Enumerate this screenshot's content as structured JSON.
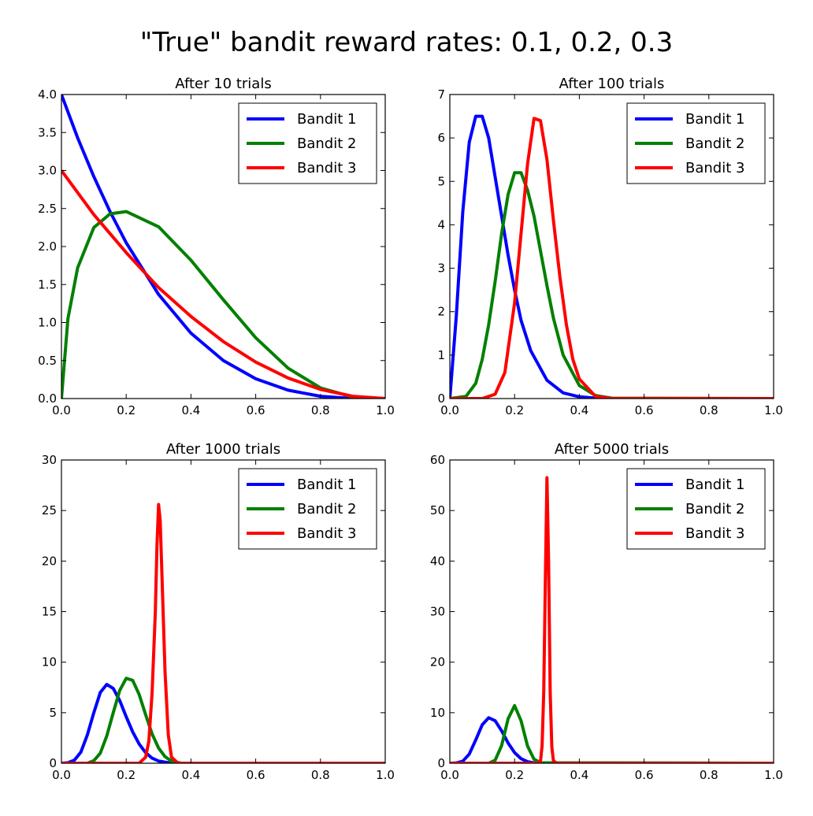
{
  "suptitle": "\"True\" bandit reward rates: 0.1, 0.2, 0.3",
  "chart_data": [
    {
      "type": "line",
      "title": "After 10 trials",
      "xlim": [
        0,
        1
      ],
      "ylim": [
        0,
        4
      ],
      "xticks": [
        0.0,
        0.2,
        0.4,
        0.6,
        0.8,
        1.0
      ],
      "yticks": [
        0.0,
        0.5,
        1.0,
        1.5,
        2.0,
        2.5,
        3.0,
        3.5,
        4.0
      ],
      "xtick_labels": [
        "0.0",
        "0.2",
        "0.4",
        "0.6",
        "0.8",
        "1.0"
      ],
      "ytick_labels": [
        "0.0",
        "0.5",
        "1.0",
        "1.5",
        "2.0",
        "2.5",
        "3.0",
        "3.5",
        "4.0"
      ],
      "legend": "upper-right",
      "series": [
        {
          "name": "Bandit 1",
          "color": "#0000ff",
          "x": [
            0,
            0.05,
            0.1,
            0.15,
            0.2,
            0.3,
            0.4,
            0.5,
            0.6,
            0.7,
            0.8,
            0.9,
            1.0
          ],
          "y": [
            4.0,
            3.43,
            2.92,
            2.46,
            2.05,
            1.37,
            0.86,
            0.5,
            0.26,
            0.11,
            0.03,
            0.0,
            0.0
          ]
        },
        {
          "name": "Bandit 2",
          "color": "#008000",
          "x": [
            0,
            0.02,
            0.05,
            0.1,
            0.15,
            0.2,
            0.3,
            0.4,
            0.5,
            0.6,
            0.7,
            0.8,
            0.9,
            1.0
          ],
          "y": [
            0.0,
            1.05,
            1.72,
            2.25,
            2.43,
            2.46,
            2.26,
            1.82,
            1.3,
            0.8,
            0.4,
            0.14,
            0.02,
            0.0
          ]
        },
        {
          "name": "Bandit 3",
          "color": "#ff0000",
          "x": [
            0,
            0.1,
            0.2,
            0.3,
            0.4,
            0.5,
            0.6,
            0.7,
            0.8,
            0.9,
            1.0
          ],
          "y": [
            3.0,
            2.42,
            1.92,
            1.46,
            1.08,
            0.75,
            0.48,
            0.27,
            0.12,
            0.03,
            0.0
          ]
        }
      ]
    },
    {
      "type": "line",
      "title": "After 100 trials",
      "xlim": [
        0,
        1
      ],
      "ylim": [
        0,
        7
      ],
      "xticks": [
        0.0,
        0.2,
        0.4,
        0.6,
        0.8,
        1.0
      ],
      "yticks": [
        0,
        1,
        2,
        3,
        4,
        5,
        6,
        7
      ],
      "xtick_labels": [
        "0.0",
        "0.2",
        "0.4",
        "0.6",
        "0.8",
        "1.0"
      ],
      "ytick_labels": [
        "0",
        "1",
        "2",
        "3",
        "4",
        "5",
        "6",
        "7"
      ],
      "legend": "upper-right",
      "series": [
        {
          "name": "Bandit 1",
          "color": "#0000ff",
          "x": [
            0,
            0.02,
            0.04,
            0.06,
            0.08,
            0.1,
            0.12,
            0.14,
            0.16,
            0.18,
            0.2,
            0.22,
            0.25,
            0.3,
            0.35,
            0.4,
            0.45,
            0.5,
            1.0
          ],
          "y": [
            0.0,
            1.9,
            4.3,
            5.9,
            6.5,
            6.5,
            6.0,
            5.1,
            4.2,
            3.3,
            2.5,
            1.8,
            1.1,
            0.42,
            0.13,
            0.04,
            0.01,
            0.0,
            0.0
          ]
        },
        {
          "name": "Bandit 2",
          "color": "#008000",
          "x": [
            0,
            0.05,
            0.08,
            0.1,
            0.12,
            0.14,
            0.16,
            0.18,
            0.2,
            0.22,
            0.24,
            0.26,
            0.28,
            0.3,
            0.32,
            0.35,
            0.4,
            0.45,
            0.5,
            1.0
          ],
          "y": [
            0.0,
            0.05,
            0.35,
            0.9,
            1.7,
            2.7,
            3.8,
            4.7,
            5.2,
            5.2,
            4.8,
            4.2,
            3.4,
            2.6,
            1.85,
            1.0,
            0.3,
            0.07,
            0.01,
            0.0
          ]
        },
        {
          "name": "Bandit 3",
          "color": "#ff0000",
          "x": [
            0,
            0.1,
            0.14,
            0.17,
            0.2,
            0.22,
            0.24,
            0.26,
            0.28,
            0.3,
            0.32,
            0.34,
            0.36,
            0.38,
            0.4,
            0.45,
            0.5,
            1.0
          ],
          "y": [
            0.0,
            0.0,
            0.1,
            0.6,
            2.2,
            3.8,
            5.4,
            6.45,
            6.4,
            5.5,
            4.1,
            2.8,
            1.7,
            0.9,
            0.45,
            0.05,
            0.0,
            0.0
          ]
        }
      ]
    },
    {
      "type": "line",
      "title": "After 1000 trials",
      "xlim": [
        0,
        1
      ],
      "ylim": [
        0,
        30
      ],
      "xticks": [
        0.0,
        0.2,
        0.4,
        0.6,
        0.8,
        1.0
      ],
      "yticks": [
        0,
        5,
        10,
        15,
        20,
        25,
        30
      ],
      "xtick_labels": [
        "0.0",
        "0.2",
        "0.4",
        "0.6",
        "0.8",
        "1.0"
      ],
      "ytick_labels": [
        "0",
        "5",
        "10",
        "15",
        "20",
        "25",
        "30"
      ],
      "legend": "upper-right",
      "series": [
        {
          "name": "Bandit 1",
          "color": "#0000ff",
          "x": [
            0,
            0.02,
            0.04,
            0.06,
            0.08,
            0.1,
            0.12,
            0.14,
            0.16,
            0.18,
            0.2,
            0.22,
            0.24,
            0.26,
            0.28,
            0.3,
            0.33,
            0.36,
            1.0
          ],
          "y": [
            0.0,
            0.05,
            0.3,
            1.1,
            2.8,
            5.0,
            7.0,
            7.8,
            7.4,
            6.2,
            4.6,
            3.1,
            1.9,
            1.05,
            0.5,
            0.22,
            0.05,
            0.0,
            0.0
          ]
        },
        {
          "name": "Bandit 2",
          "color": "#008000",
          "x": [
            0,
            0.08,
            0.1,
            0.12,
            0.14,
            0.16,
            0.18,
            0.2,
            0.22,
            0.24,
            0.26,
            0.28,
            0.3,
            0.32,
            0.34,
            0.37,
            1.0
          ],
          "y": [
            0.0,
            0.0,
            0.25,
            1.0,
            2.7,
            5.0,
            7.2,
            8.4,
            8.2,
            6.8,
            4.8,
            2.9,
            1.5,
            0.65,
            0.2,
            0.0,
            0.0
          ]
        },
        {
          "name": "Bandit 3",
          "color": "#ff0000",
          "x": [
            0,
            0.24,
            0.26,
            0.27,
            0.28,
            0.29,
            0.295,
            0.3,
            0.305,
            0.31,
            0.32,
            0.33,
            0.34,
            0.36,
            1.0
          ],
          "y": [
            0.0,
            0.0,
            0.6,
            2.2,
            7.0,
            15.0,
            21.5,
            25.6,
            24.0,
            19.0,
            9.0,
            2.8,
            0.6,
            0.0,
            0.0
          ]
        }
      ]
    },
    {
      "type": "line",
      "title": "After 5000 trials",
      "xlim": [
        0,
        1
      ],
      "ylim": [
        0,
        60
      ],
      "xticks": [
        0.0,
        0.2,
        0.4,
        0.6,
        0.8,
        1.0
      ],
      "yticks": [
        0,
        10,
        20,
        30,
        40,
        50,
        60
      ],
      "xtick_labels": [
        "0.0",
        "0.2",
        "0.4",
        "0.6",
        "0.8",
        "1.0"
      ],
      "ytick_labels": [
        "0",
        "10",
        "20",
        "30",
        "40",
        "50",
        "60"
      ],
      "legend": "upper-right",
      "series": [
        {
          "name": "Bandit 1",
          "color": "#0000ff",
          "x": [
            0,
            0.02,
            0.04,
            0.06,
            0.08,
            0.1,
            0.12,
            0.14,
            0.16,
            0.18,
            0.2,
            0.22,
            0.24,
            0.26,
            0.28,
            0.3,
            1.0
          ],
          "y": [
            0.0,
            0.05,
            0.4,
            1.8,
            4.6,
            7.6,
            9.0,
            8.4,
            6.4,
            4.0,
            2.1,
            0.9,
            0.3,
            0.08,
            0.01,
            0.0,
            0.0
          ]
        },
        {
          "name": "Bandit 2",
          "color": "#008000",
          "x": [
            0,
            0.12,
            0.14,
            0.16,
            0.18,
            0.2,
            0.22,
            0.24,
            0.26,
            0.28,
            1.0
          ],
          "y": [
            0.0,
            0.0,
            0.6,
            3.5,
            8.8,
            11.4,
            8.4,
            3.4,
            0.8,
            0.1,
            0.0
          ]
        },
        {
          "name": "Bandit 3",
          "color": "#ff0000",
          "x": [
            0,
            0.27,
            0.28,
            0.285,
            0.29,
            0.295,
            0.3,
            0.305,
            0.31,
            0.315,
            0.32,
            0.33,
            1.0
          ],
          "y": [
            0.0,
            0.0,
            0.4,
            3.5,
            14.0,
            36.0,
            56.5,
            40.0,
            14.0,
            3.2,
            0.5,
            0.0,
            0.0
          ]
        }
      ]
    }
  ]
}
